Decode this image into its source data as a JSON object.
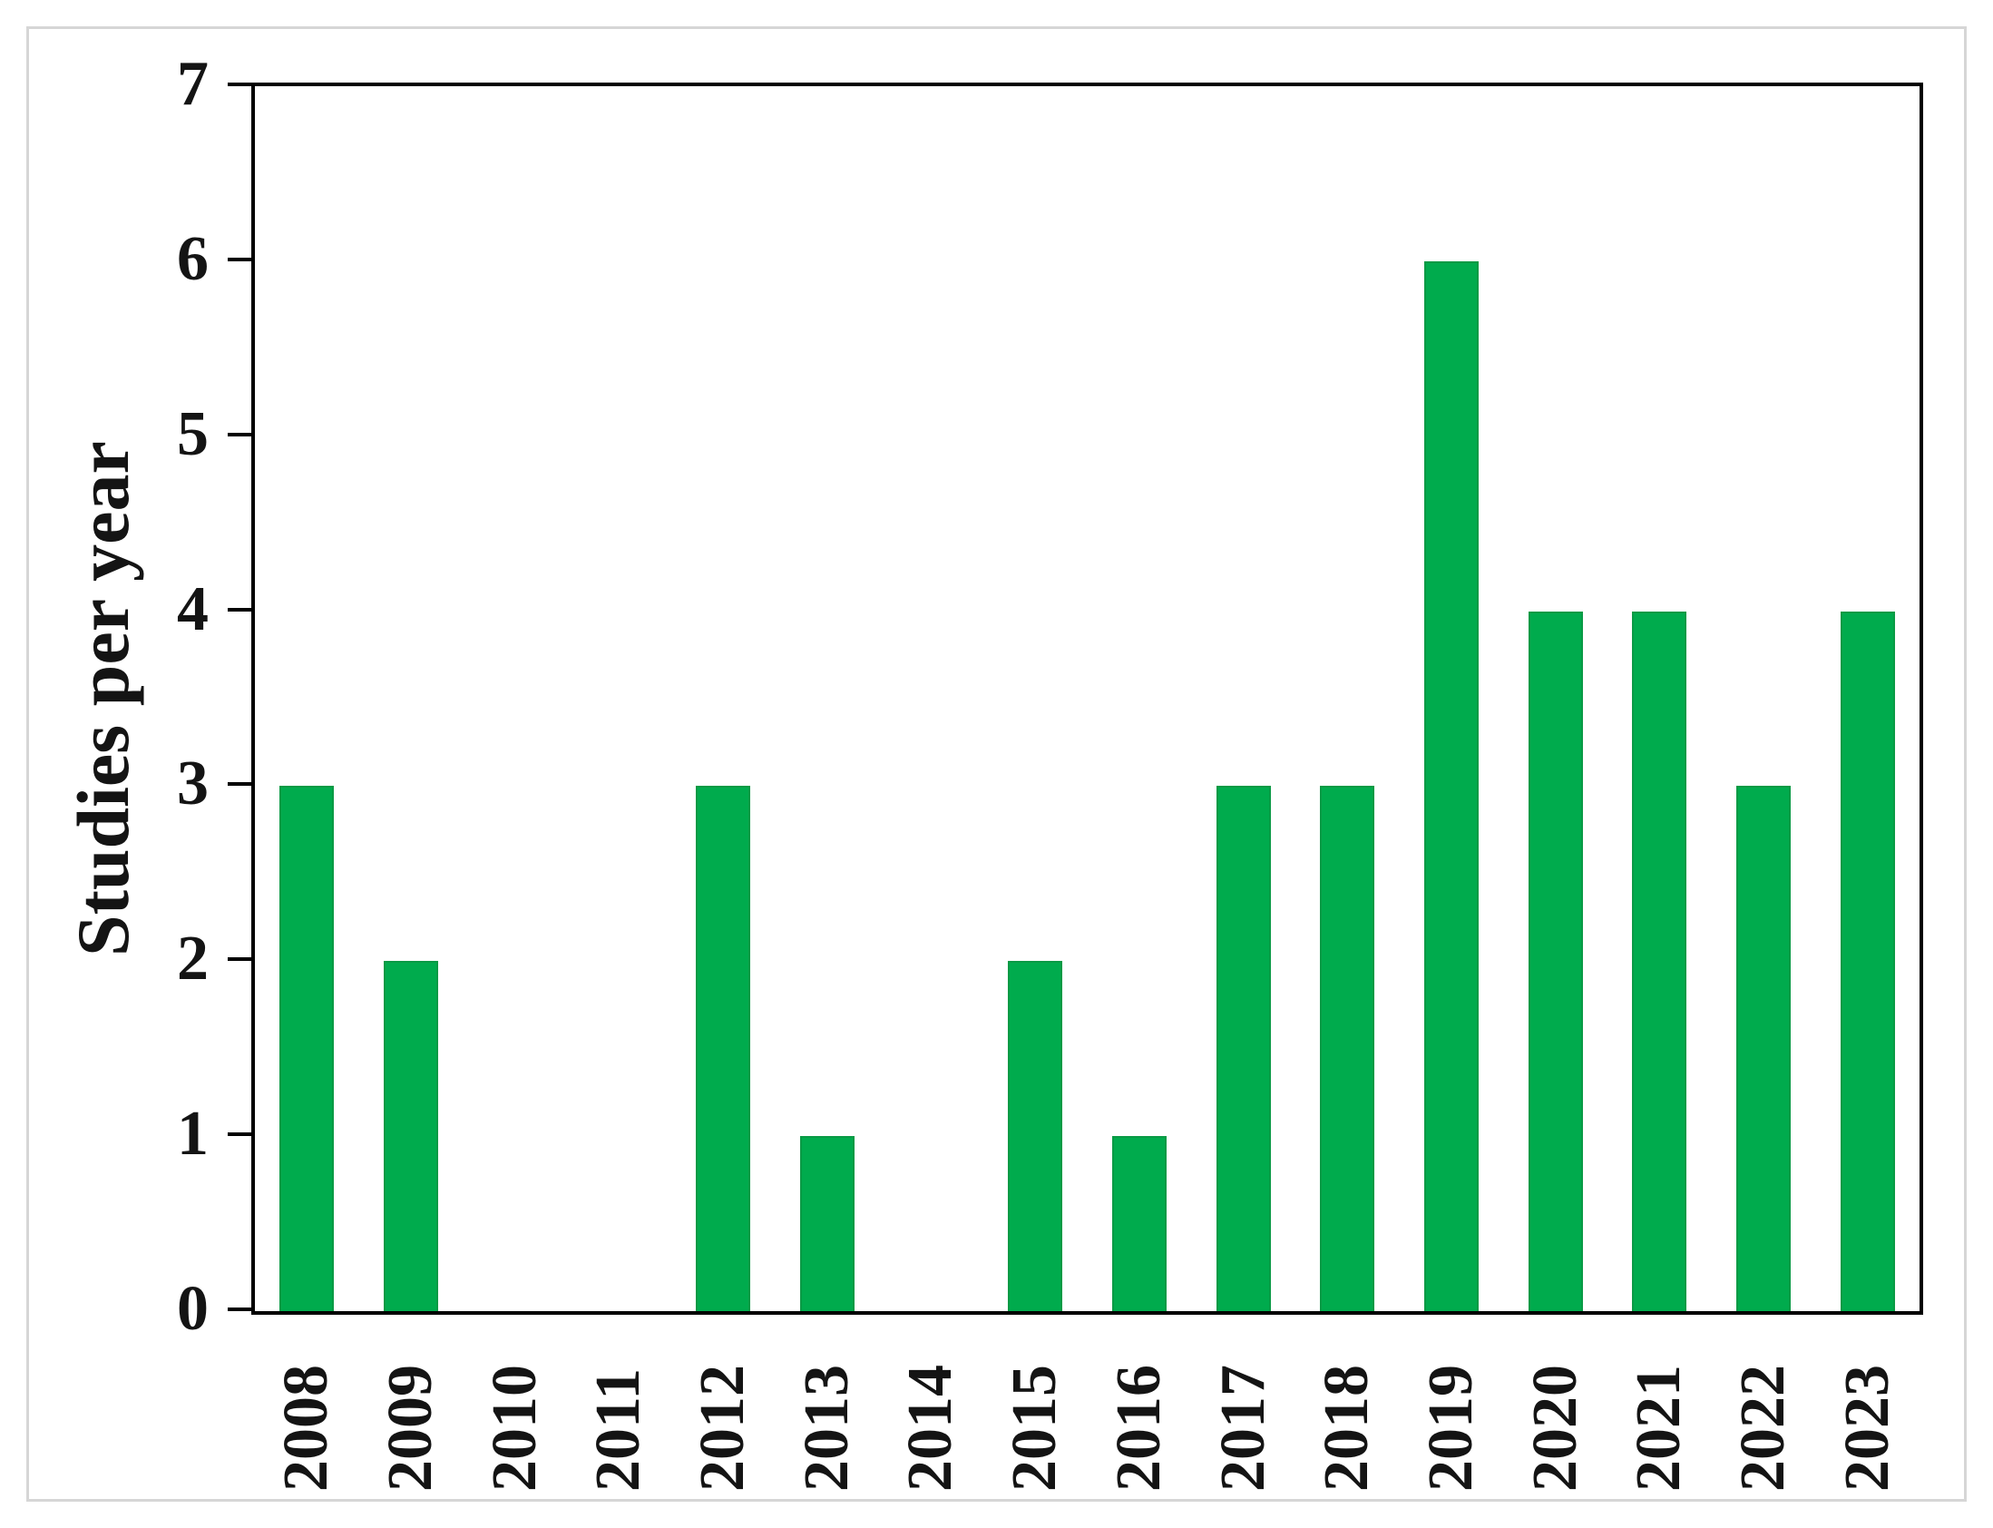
{
  "chart_data": {
    "type": "bar",
    "title": "",
    "xlabel": "",
    "ylabel": "Studies per year",
    "categories": [
      "2008",
      "2009",
      "2010",
      "2011",
      "2012",
      "2013",
      "2014",
      "2015",
      "2016",
      "2017",
      "2018",
      "2019",
      "2020",
      "2021",
      "2022",
      "2023"
    ],
    "values": [
      3,
      2,
      0,
      0,
      3,
      1,
      0,
      2,
      1,
      3,
      3,
      6,
      4,
      4,
      3,
      4
    ],
    "ylim": [
      0,
      7
    ],
    "yticks": [
      "0",
      "1",
      "2",
      "3",
      "4",
      "5",
      "6",
      "7"
    ],
    "grid": false,
    "legend": null,
    "bar_color": "#00AB4D",
    "bar_border_color": "#0a9a45",
    "axis_color": "#000000",
    "frame_color": "#d6d6d6"
  }
}
